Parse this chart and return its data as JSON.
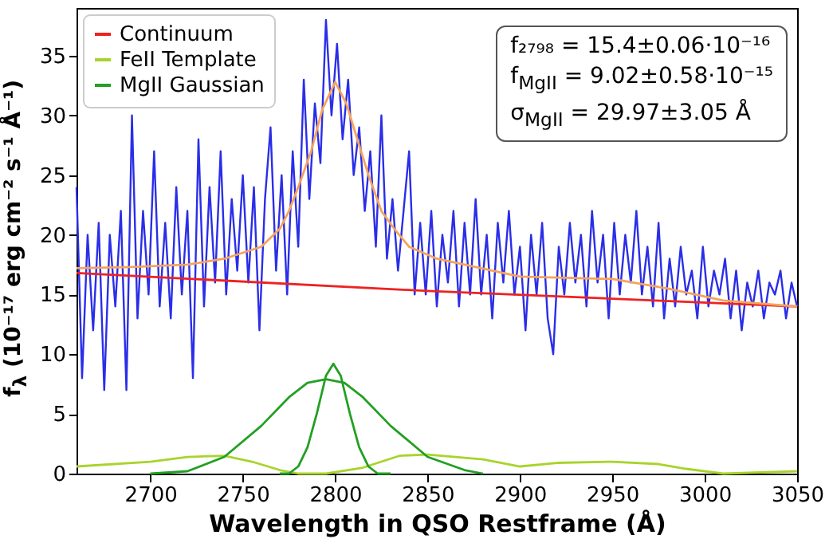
{
  "chart_data": {
    "type": "line",
    "xlabel": "Wavelength in QSO Restframe (Å)",
    "ylabel": "f$_{λ}$ (10⁻¹⁷ erg cm⁻² s⁻¹ Å⁻¹)",
    "xlim": [
      2660,
      3050
    ],
    "xticks": [
      2700,
      2750,
      2800,
      2850,
      2900,
      2950,
      3000,
      3050
    ],
    "ylim": [
      0,
      39
    ],
    "yticks": [
      0,
      5,
      10,
      15,
      20,
      25,
      30,
      35
    ],
    "grid": false,
    "legend": "top left",
    "marker": "none",
    "line_style": "solid",
    "annotations": [
      "f₂₇₉₈ = 15.4±0.06·10⁻¹⁶",
      "f$_{MgII}$ = 9.02±0.58·10⁻¹⁵",
      "σ$_{MgII}$ = 29.97±3.05 Å"
    ],
    "series": [
      {
        "type": "line",
        "color": "#2a2ee8",
        "x": [
          2660,
          2663,
          2666,
          2669,
          2672,
          2675,
          2678,
          2681,
          2684,
          2687,
          2690,
          2693,
          2696,
          2699,
          2702,
          2705,
          2708,
          2711,
          2714,
          2717,
          2720,
          2723,
          2726,
          2729,
          2732,
          2735,
          2738,
          2741,
          2744,
          2747,
          2750,
          2753,
          2756,
          2759,
          2762,
          2765,
          2768,
          2771,
          2774,
          2777,
          2780,
          2783,
          2786,
          2789,
          2792,
          2795,
          2798,
          2801,
          2804,
          2807,
          2810,
          2813,
          2816,
          2819,
          2822,
          2825,
          2828,
          2831,
          2834,
          2837,
          2840,
          2843,
          2846,
          2849,
          2852,
          2855,
          2858,
          2861,
          2864,
          2867,
          2870,
          2873,
          2876,
          2879,
          2882,
          2885,
          2888,
          2891,
          2894,
          2897,
          2900,
          2903,
          2906,
          2909,
          2912,
          2915,
          2918,
          2921,
          2924,
          2927,
          2930,
          2933,
          2936,
          2939,
          2942,
          2945,
          2948,
          2951,
          2954,
          2957,
          2960,
          2963,
          2966,
          2969,
          2972,
          2975,
          2978,
          2981,
          2984,
          2987,
          2990,
          2993,
          2996,
          2999,
          3002,
          3005,
          3008,
          3011,
          3014,
          3017,
          3020,
          3023,
          3026,
          3029,
          3032,
          3035,
          3038,
          3041,
          3044,
          3047,
          3050
        ],
        "values": [
          24,
          8,
          20,
          12,
          21,
          7,
          20,
          14,
          22,
          7,
          30,
          13,
          22,
          15,
          27,
          14,
          21,
          13,
          24,
          15,
          22,
          8,
          28,
          14,
          24,
          16,
          27,
          15,
          23,
          17,
          25,
          16,
          24,
          12,
          23,
          29,
          17,
          25,
          15,
          27,
          19,
          33,
          23,
          31,
          26,
          38,
          30,
          36,
          28,
          33,
          25,
          29,
          22,
          27,
          19,
          30,
          18,
          23,
          17,
          22,
          27,
          15,
          21,
          15,
          22,
          14,
          20,
          16,
          22,
          14,
          21,
          15,
          23,
          15,
          20,
          13,
          21,
          16,
          22,
          15,
          19,
          12,
          20,
          15,
          21,
          13,
          10,
          19,
          15,
          21,
          16,
          20,
          14,
          22,
          16,
          20,
          13,
          21,
          15,
          20,
          16,
          22,
          15,
          19,
          14,
          21,
          13,
          18,
          14,
          19,
          15,
          17,
          13,
          19,
          14,
          17,
          15,
          18,
          13,
          17,
          12,
          16,
          14,
          17,
          13,
          16,
          15,
          17,
          13,
          16,
          14
        ]
      },
      {
        "type": "line",
        "color": "#f5a35c",
        "x": [
          2660,
          2690,
          2720,
          2740,
          2760,
          2770,
          2775,
          2780,
          2787,
          2793,
          2800,
          2806,
          2812,
          2818,
          2825,
          2832,
          2840,
          2855,
          2870,
          2900,
          2950,
          2980,
          3010,
          3050
        ],
        "values": [
          17.2,
          17.3,
          17.5,
          18,
          19,
          20.5,
          22,
          24,
          27,
          30.5,
          32.8,
          31,
          28,
          25,
          22,
          20.5,
          19,
          18,
          17.5,
          16.5,
          16.3,
          15.5,
          14.5,
          14
        ]
      },
      {
        "type": "line",
        "name": "Continuum",
        "color": "#ee2222",
        "x": [
          2660,
          2850,
          3050
        ],
        "values": [
          16.8,
          15.3,
          14
        ]
      },
      {
        "type": "line",
        "name": "FeII Template",
        "color": "#a8d42a",
        "x": [
          2660,
          2700,
          2720,
          2740,
          2755,
          2770,
          2780,
          2795,
          2815,
          2835,
          2850,
          2880,
          2900,
          2920,
          2950,
          2975,
          2990,
          3010,
          3030,
          3050
        ],
        "values": [
          0.6,
          1.0,
          1.4,
          1.5,
          1.0,
          0.3,
          0,
          0,
          0.5,
          1.5,
          1.6,
          1.2,
          0.6,
          0.9,
          1.0,
          0.8,
          0.4,
          0,
          0.1,
          0.2
        ]
      },
      {
        "type": "line",
        "name": "MgII Gaussian",
        "color": "#22a022",
        "x": [
          2770,
          2775,
          2780,
          2785,
          2790,
          2795,
          2799,
          2803,
          2808,
          2813,
          2818,
          2823,
          2830
        ],
        "values": [
          0,
          0,
          0.6,
          2.2,
          5,
          8.2,
          9.2,
          8.2,
          5,
          2.2,
          0.6,
          0,
          0
        ]
      },
      {
        "type": "line",
        "color": "#22a022",
        "x": [
          2700,
          2720,
          2740,
          2760,
          2775,
          2785,
          2795,
          2805,
          2815,
          2830,
          2850,
          2870,
          2880
        ],
        "values": [
          0,
          0.2,
          1.4,
          4,
          6.4,
          7.6,
          7.9,
          7.6,
          6.4,
          4,
          1.4,
          0.3,
          0
        ]
      }
    ]
  }
}
